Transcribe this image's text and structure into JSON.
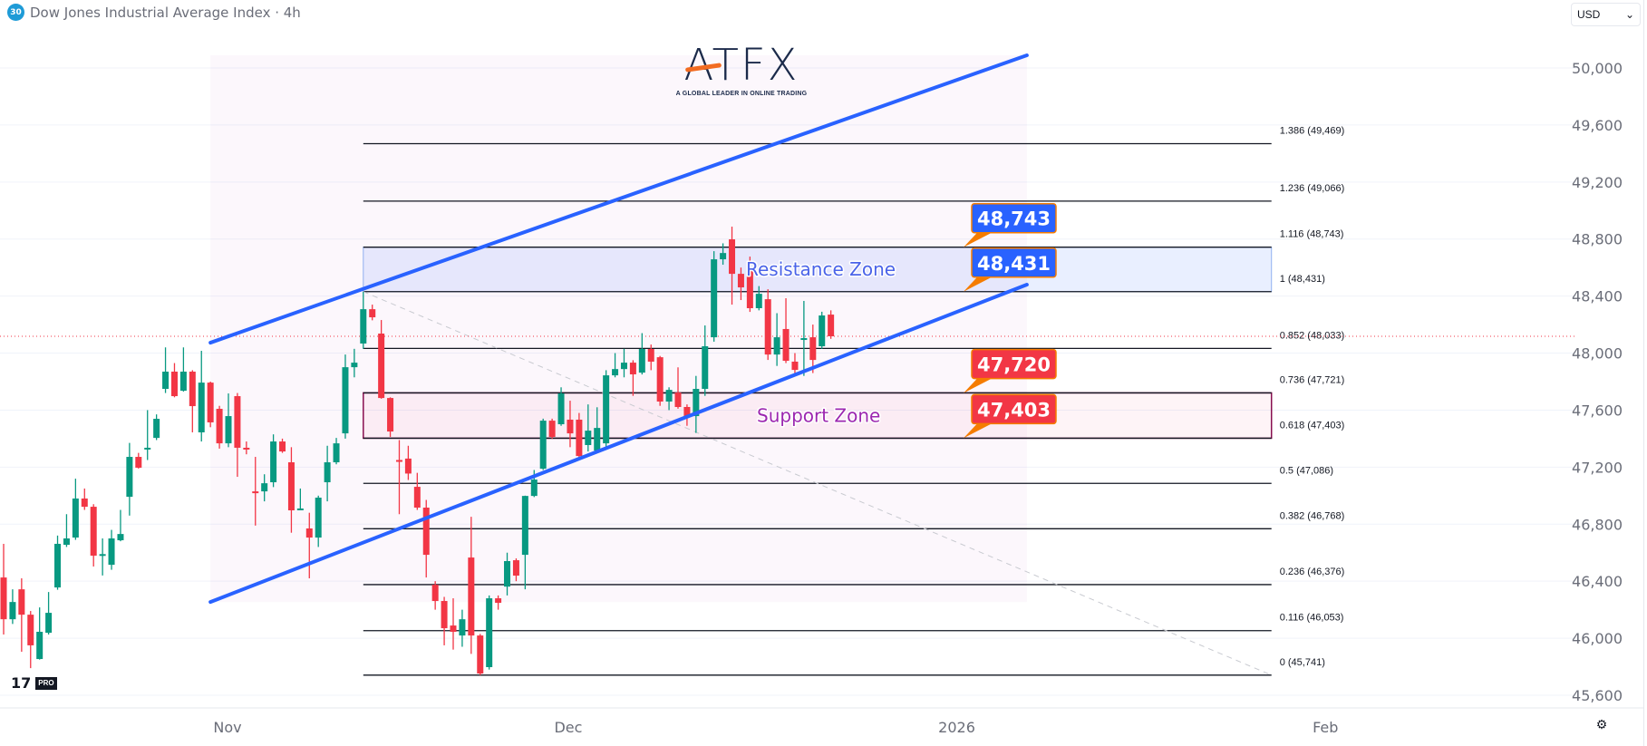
{
  "header": {
    "symbol_badge": "30",
    "title": "Dow Jones Industrial Average Index · 4h",
    "currency": "USD",
    "currency_caret": "⌄"
  },
  "branding": {
    "logo_text": "ATFX",
    "logo_tagline": "A GLOBAL LEADER IN ONLINE TRADING",
    "tv_mark": "17",
    "tv_pro": "PRO"
  },
  "settings_icon": "⚙",
  "chart_data": {
    "type": "candlestick",
    "title": "Dow Jones Industrial Average Index · 4h",
    "timeframe": "4h",
    "colors": {
      "up": "#089981",
      "down": "#f23645",
      "channel": "#2962ff",
      "resistance_text": "#4a63e8",
      "support_text": "#9c27b0",
      "support_border": "#880e4f",
      "last_price": "#f23645"
    },
    "ylim": [
      45600,
      50150
    ],
    "y_ticks": [
      "50,000",
      "49,600",
      "49,200",
      "48,800",
      "48,400",
      "48,000",
      "47,600",
      "47,200",
      "46,800",
      "46,400",
      "46,000",
      "45,600"
    ],
    "y_tick_values": [
      50000,
      49600,
      49200,
      48800,
      48400,
      48000,
      47600,
      47200,
      46800,
      46400,
      46000,
      45600
    ],
    "x_ticks": [
      {
        "label": "Nov",
        "bar": 24.9
      },
      {
        "label": "Dec",
        "bar": 62.8
      },
      {
        "label": "2026",
        "bar": 106
      },
      {
        "label": "Feb",
        "bar": 147
      }
    ],
    "grid": true,
    "candles_ohlc": [
      [
        46426,
        46662,
        46026,
        46133
      ],
      [
        46133,
        46343,
        46100,
        46254
      ],
      [
        46343,
        46420,
        45905,
        46165
      ],
      [
        46165,
        46191,
        45790,
        45950
      ],
      [
        45854,
        46216,
        45850,
        46045
      ],
      [
        46038,
        46324,
        46026,
        46178
      ],
      [
        46356,
        46720,
        46340,
        46662
      ],
      [
        46655,
        46870,
        46640,
        46700
      ],
      [
        46706,
        47119,
        46690,
        46980
      ],
      [
        46980,
        47050,
        46900,
        46922
      ],
      [
        46922,
        46940,
        46503,
        46579
      ],
      [
        46585,
        46700,
        46440,
        46590
      ],
      [
        46515,
        46760,
        46480,
        46700
      ],
      [
        46687,
        46900,
        46680,
        46731
      ],
      [
        46992,
        47370,
        46860,
        47272
      ],
      [
        47272,
        47300,
        47190,
        47196
      ],
      [
        47330,
        47600,
        47250,
        47336
      ],
      [
        47405,
        47570,
        47390,
        47539
      ],
      [
        47749,
        48040,
        47720,
        47870
      ],
      [
        47870,
        47930,
        47690,
        47698
      ],
      [
        47736,
        48040,
        47730,
        47870
      ],
      [
        47870,
        47880,
        47444,
        47628
      ],
      [
        47444,
        48016,
        47380,
        47793
      ],
      [
        47793,
        47800,
        47480,
        47514
      ],
      [
        47609,
        47630,
        47330,
        47367
      ],
      [
        47367,
        47717,
        47340,
        47558
      ],
      [
        47698,
        47720,
        47132,
        47336
      ],
      [
        47336,
        47380,
        47290,
        47330
      ],
      [
        47030,
        47272,
        46790,
        47020
      ],
      [
        47030,
        47150,
        46960,
        47087
      ],
      [
        47094,
        47430,
        47060,
        47380
      ],
      [
        47380,
        47400,
        47300,
        47310
      ],
      [
        47234,
        47340,
        46740,
        46897
      ],
      [
        46903,
        47050,
        46900,
        46910
      ],
      [
        46770,
        46880,
        46420,
        46706
      ],
      [
        46706,
        47000,
        46640,
        46986
      ],
      [
        47094,
        47350,
        46960,
        47234
      ],
      [
        47234,
        47405,
        47220,
        47367
      ],
      [
        47437,
        47990,
        47400,
        47901
      ],
      [
        47901,
        48030,
        47830,
        47933
      ],
      [
        48067,
        48430,
        48030,
        48308
      ],
      [
        48308,
        48340,
        48230,
        48251
      ],
      [
        48137,
        48232,
        47680,
        47685
      ],
      [
        47685,
        47690,
        47412,
        47450
      ],
      [
        47250,
        47390,
        46870,
        47240
      ],
      [
        47260,
        47350,
        47110,
        47155
      ],
      [
        47062,
        47160,
        46900,
        46916
      ],
      [
        46916,
        46970,
        46426,
        46585
      ],
      [
        46375,
        46400,
        46200,
        46261
      ],
      [
        46261,
        46290,
        45950,
        46070
      ],
      [
        46089,
        46280,
        45920,
        46045
      ],
      [
        46019,
        46200,
        45940,
        46133
      ],
      [
        46566,
        46852,
        45890,
        46019
      ],
      [
        46019,
        46030,
        45741,
        45752
      ],
      [
        45797,
        46300,
        45780,
        46280
      ],
      [
        46280,
        46300,
        46200,
        46248
      ],
      [
        46362,
        46600,
        46300,
        46541
      ],
      [
        46547,
        46560,
        46400,
        46439
      ],
      [
        46585,
        47000,
        46343,
        46998
      ],
      [
        46998,
        47180,
        46990,
        47113
      ],
      [
        47189,
        47540,
        47180,
        47526
      ],
      [
        47526,
        47540,
        47400,
        47412
      ],
      [
        47501,
        47760,
        47490,
        47717
      ],
      [
        47533,
        47666,
        47340,
        47437
      ],
      [
        47533,
        47580,
        47260,
        47278
      ],
      [
        47355,
        47640,
        47310,
        47456
      ],
      [
        47316,
        47620,
        47300,
        47475
      ],
      [
        47367,
        47880,
        47340,
        47844
      ],
      [
        47844,
        48000,
        47830,
        47888
      ],
      [
        47888,
        48030,
        47830,
        47933
      ],
      [
        47933,
        47950,
        47700,
        47851
      ],
      [
        47863,
        48140,
        47850,
        48029
      ],
      [
        48029,
        48060,
        47880,
        47940
      ],
      [
        47971,
        47980,
        47630,
        47660
      ],
      [
        47660,
        47760,
        47600,
        47742
      ],
      [
        47723,
        47900,
        47610,
        47622
      ],
      [
        47622,
        47640,
        47490,
        47558
      ],
      [
        47558,
        47840,
        47440,
        47749
      ],
      [
        47749,
        48194,
        47700,
        48048
      ],
      [
        48111,
        48715,
        48080,
        48658
      ],
      [
        48658,
        48770,
        48620,
        48702
      ],
      [
        48798,
        48887,
        48340,
        48556
      ],
      [
        48556,
        48600,
        48372,
        48461
      ],
      [
        48595,
        48677,
        48289,
        48315
      ],
      [
        48315,
        48470,
        48300,
        48416
      ],
      [
        48378,
        48448,
        47952,
        47990
      ],
      [
        47990,
        48280,
        47910,
        48111
      ],
      [
        48169,
        48385,
        47930,
        47946
      ],
      [
        47940,
        48000,
        47840,
        47882
      ],
      [
        48100,
        48366,
        47840,
        48105
      ],
      [
        48111,
        48200,
        47860,
        47952
      ],
      [
        48048,
        48290,
        48030,
        48264
      ],
      [
        48270,
        48300,
        48100,
        48118
      ]
    ],
    "last_price": 48118,
    "channel": {
      "upper": [
        [
          23,
          48073
        ],
        [
          113.8,
          50089
        ]
      ],
      "lower": [
        [
          23,
          46254
        ],
        [
          113.8,
          48480
        ]
      ]
    },
    "trend_dashed": [
      [
        40,
        48431
      ],
      [
        141,
        45741
      ]
    ],
    "fibonacci": {
      "start_bar": 40,
      "end_bar": 141,
      "levels": [
        {
          "ratio": "1.386",
          "price": 49469,
          "label": "1.386 (49,469)"
        },
        {
          "ratio": "1.236",
          "price": 49066,
          "label": "1.236 (49,066)"
        },
        {
          "ratio": "1.116",
          "price": 48743,
          "label": "1.116 (48,743)"
        },
        {
          "ratio": "1",
          "price": 48431,
          "label": "1 (48,431)"
        },
        {
          "ratio": "0.852",
          "price": 48033,
          "label": "0.852 (48,033)"
        },
        {
          "ratio": "0.736",
          "price": 47721,
          "label": "0.736 (47,721)"
        },
        {
          "ratio": "0.618",
          "price": 47403,
          "label": "0.618 (47,403)"
        },
        {
          "ratio": "0.5",
          "price": 47086,
          "label": "0.5 (47,086)"
        },
        {
          "ratio": "0.382",
          "price": 46768,
          "label": "0.382 (46,768)"
        },
        {
          "ratio": "0.236",
          "price": 46376,
          "label": "0.236 (46,376)"
        },
        {
          "ratio": "0.116",
          "price": 46053,
          "label": "0.116 (46,053)"
        },
        {
          "ratio": "0",
          "price": 45741,
          "label": "0 (45,741)"
        }
      ]
    },
    "zones": [
      {
        "name": "resistance",
        "label": "Resistance Zone",
        "top": 48743,
        "bottom": 48431
      },
      {
        "name": "support",
        "label": "Support Zone",
        "top": 47721,
        "bottom": 47403
      }
    ],
    "callouts": [
      {
        "text": "48,743",
        "price": 48743,
        "color": "#2962ff"
      },
      {
        "text": "48,431",
        "price": 48431,
        "color": "#2962ff"
      },
      {
        "text": "47,720",
        "price": 47720,
        "color": "#f23645"
      },
      {
        "text": "47,403",
        "price": 47403,
        "color": "#f23645"
      }
    ]
  }
}
